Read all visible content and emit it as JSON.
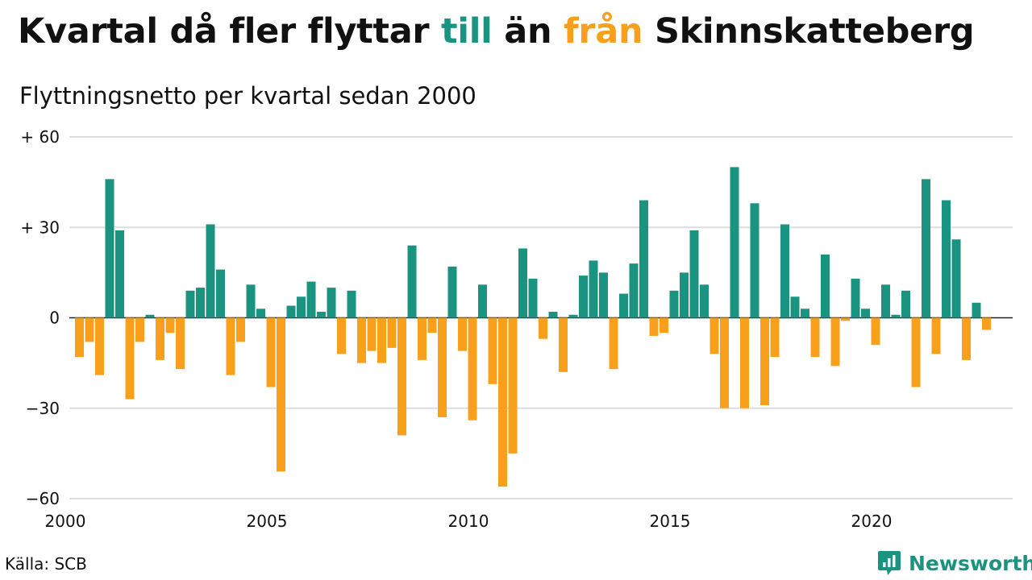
{
  "title": {
    "part1": "Kvartal då fler flyttar ",
    "highlight_in": "till",
    "part2": " än ",
    "highlight_out": "från",
    "part3": " Skinnskatteberg"
  },
  "subtitle": "Flyttningsnetto per kvartal sedan 2000",
  "source": "Källa: SCB",
  "brand": {
    "name": "Newsworthy",
    "logo_icon": "newsworthy-logo-icon"
  },
  "colors": {
    "positive": "#1a9481",
    "negative": "#f8a01c",
    "grid": "#dddddd",
    "text": "#111111"
  },
  "chart_data": {
    "type": "bar",
    "x_start": "2000 Q1",
    "frequency": "quarterly",
    "values": [
      -13,
      -8,
      -19,
      46,
      29,
      -27,
      -8,
      1,
      -14,
      -5,
      -17,
      9,
      10,
      31,
      16,
      -19,
      -8,
      11,
      3,
      -23,
      -51,
      4,
      7,
      12,
      2,
      10,
      -12,
      9,
      -15,
      -11,
      -15,
      -10,
      -39,
      24,
      -14,
      -5,
      -33,
      17,
      -11,
      -34,
      11,
      -22,
      -56,
      -45,
      23,
      13,
      -7,
      2,
      -18,
      1,
      14,
      19,
      15,
      -17,
      8,
      18,
      39,
      -6,
      -5,
      9,
      15,
      29,
      11,
      -12,
      -30,
      50,
      -30,
      38,
      -29,
      -13,
      31,
      7,
      3,
      -13,
      21,
      -16,
      -1,
      13,
      3,
      -9,
      11,
      1,
      9,
      -23,
      46,
      -12,
      39,
      26,
      -14,
      5,
      -4
    ],
    "ylim": [
      -60,
      60
    ],
    "yticks": [
      {
        "value": 60,
        "label": "+ 60"
      },
      {
        "value": 30,
        "label": "+ 30"
      },
      {
        "value": 0,
        "label": "0"
      },
      {
        "value": -30,
        "label": "−30"
      },
      {
        "value": -60,
        "label": "−60"
      }
    ],
    "xticks": [
      {
        "year": 2000,
        "label": "2000"
      },
      {
        "year": 2005,
        "label": "2005"
      },
      {
        "year": 2010,
        "label": "2010"
      },
      {
        "year": 2015,
        "label": "2015"
      },
      {
        "year": 2020,
        "label": "2020"
      }
    ],
    "grid": true,
    "legend": "in title (colored words)"
  }
}
